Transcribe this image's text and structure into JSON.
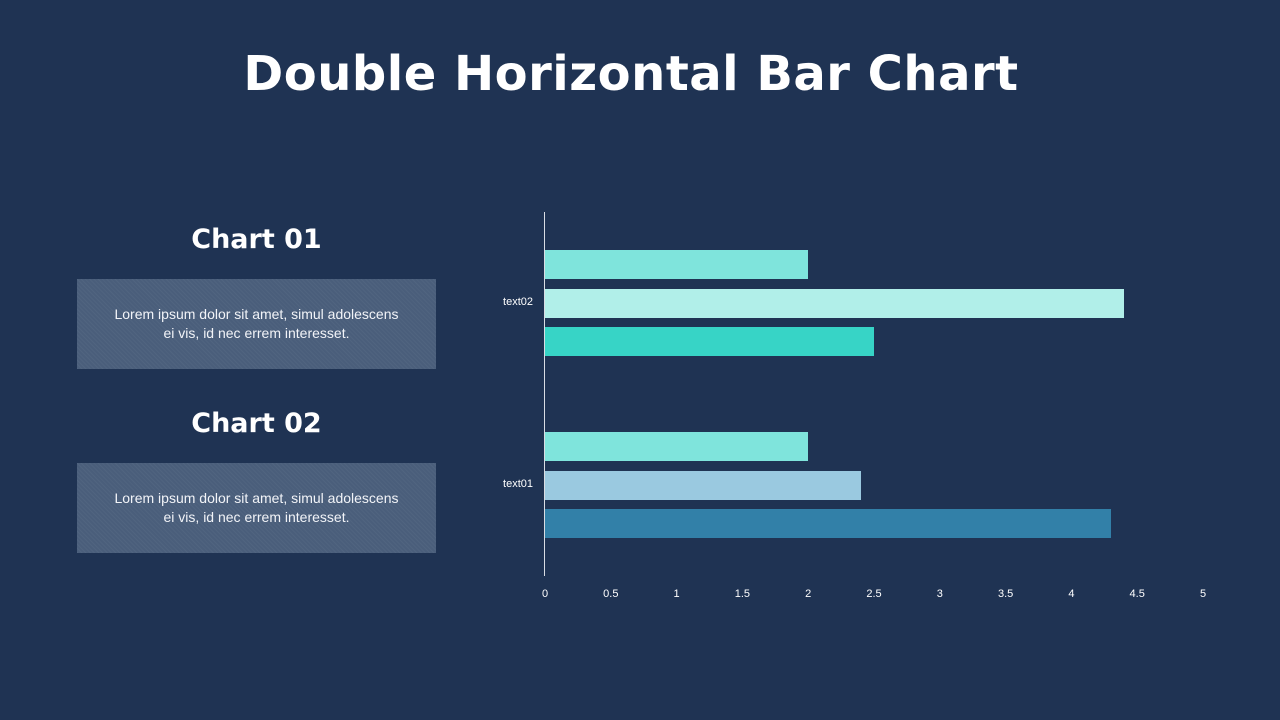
{
  "title": "Double Horizontal Bar Chart",
  "panels": [
    {
      "heading": "Chart 01",
      "body": "Lorem ipsum dolor sit amet, simul adolescens ei vis, id nec errem  interesset."
    },
    {
      "heading": "Chart 02",
      "body": "Lorem ipsum dolor sit amet, simul adolescens ei vis, id nec errem  interesset."
    }
  ],
  "colors": {
    "background": "#1f3353",
    "panel": "#4a5e7b",
    "axis": "#d9dde4"
  },
  "chart_data": {
    "type": "bar",
    "orientation": "horizontal",
    "title": "",
    "xlabel": "",
    "ylabel": "",
    "xlim": [
      0,
      5
    ],
    "x_ticks": [
      "0",
      "0.5",
      "1",
      "1.5",
      "2",
      "2.5",
      "3",
      "3.5",
      "4",
      "4.5",
      "5"
    ],
    "grid": false,
    "legend": null,
    "categories": [
      "text02",
      "text01"
    ],
    "groups": [
      {
        "category": "text02",
        "bars": [
          {
            "value": 2.0,
            "color": "#7fe4dc"
          },
          {
            "value": 4.4,
            "color": "#b1efe9"
          },
          {
            "value": 2.5,
            "color": "#37d4c6"
          }
        ]
      },
      {
        "category": "text01",
        "bars": [
          {
            "value": 2.0,
            "color": "#7fe4dc"
          },
          {
            "value": 2.4,
            "color": "#9ac9e0"
          },
          {
            "value": 4.3,
            "color": "#3280a8"
          }
        ]
      }
    ]
  }
}
